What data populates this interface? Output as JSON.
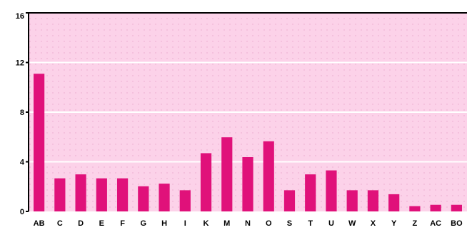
{
  "chart_data": {
    "type": "bar",
    "title": "",
    "xlabel": "",
    "ylabel": "",
    "categories": [
      "AB",
      "C",
      "D",
      "E",
      "F",
      "G",
      "H",
      "I",
      "K",
      "M",
      "N",
      "O",
      "S",
      "T",
      "U",
      "W",
      "X",
      "Y",
      "Z",
      "AC",
      "BO"
    ],
    "values": [
      10.4,
      2.5,
      2.8,
      2.5,
      2.5,
      1.9,
      2.1,
      1.6,
      4.4,
      5.6,
      4.1,
      5.3,
      1.6,
      2.8,
      3.1,
      1.6,
      1.6,
      1.3,
      0.4,
      0.5,
      0.5
    ],
    "y_ticks": [
      "0",
      "4",
      "8",
      "12",
      "16"
    ],
    "ylim": [
      0,
      15
    ],
    "grid": true,
    "colors": {
      "bar": "#e0117a",
      "plot_background": "#fcd2e9",
      "gridline": "#ffffff",
      "dot_grid": "#e8a8cc"
    }
  }
}
